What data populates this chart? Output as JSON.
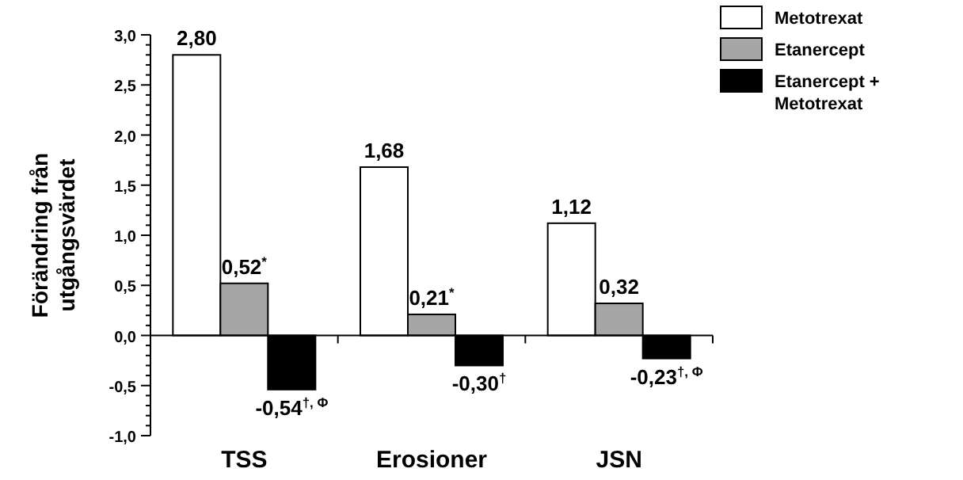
{
  "chart_data": {
    "type": "bar",
    "ylabel": "Förändring från utgångsvärdet",
    "categories": [
      "TSS",
      "Erosioner",
      "JSN"
    ],
    "series": [
      {
        "name": "Metotrexat",
        "color": "#ffffff",
        "values": [
          2.8,
          1.68,
          1.12
        ],
        "value_labels": [
          "2,80",
          "1,68",
          "1,12"
        ]
      },
      {
        "name": "Etanercept",
        "color": "#a6a6a6",
        "values": [
          0.52,
          0.21,
          0.32
        ],
        "value_labels": [
          "0,52$^{*}$",
          "0,21$^{*}$",
          "0,32"
        ]
      },
      {
        "name": "Etanercept + Metotrexat",
        "color": "#000000",
        "values": [
          -0.54,
          -0.3,
          -0.23
        ],
        "value_labels": [
          "-0,54$^{†, Φ}$",
          "-0,30$^{†}$",
          "-0,23$^{†, Φ}$"
        ]
      }
    ],
    "ylim": [
      -1.0,
      3.0
    ],
    "yticks": [
      {
        "value": -1.0,
        "label": "-1,0"
      },
      {
        "value": -0.9,
        "label": null
      },
      {
        "value": -0.8,
        "label": null
      },
      {
        "value": -0.7,
        "label": null
      },
      {
        "value": -0.6,
        "label": null
      },
      {
        "value": -0.5,
        "label": "-0,5"
      },
      {
        "value": -0.4,
        "label": null
      },
      {
        "value": -0.3,
        "label": null
      },
      {
        "value": -0.2,
        "label": null
      },
      {
        "value": -0.1,
        "label": null
      },
      {
        "value": 0.0,
        "label": "0,0"
      },
      {
        "value": 0.1,
        "label": null
      },
      {
        "value": 0.2,
        "label": null
      },
      {
        "value": 0.3,
        "label": null
      },
      {
        "value": 0.4,
        "label": null
      },
      {
        "value": 0.5,
        "label": "0,5"
      },
      {
        "value": 0.6,
        "label": null
      },
      {
        "value": 0.7,
        "label": null
      },
      {
        "value": 0.8,
        "label": null
      },
      {
        "value": 0.9,
        "label": null
      },
      {
        "value": 1.0,
        "label": "1,0"
      },
      {
        "value": 1.1,
        "label": null
      },
      {
        "value": 1.2,
        "label": null
      },
      {
        "value": 1.3,
        "label": null
      },
      {
        "value": 1.4,
        "label": null
      },
      {
        "value": 1.5,
        "label": "1,5"
      },
      {
        "value": 1.6,
        "label": null
      },
      {
        "value": 1.7,
        "label": null
      },
      {
        "value": 1.8,
        "label": null
      },
      {
        "value": 1.9,
        "label": null
      },
      {
        "value": 2.0,
        "label": "2,0"
      },
      {
        "value": 2.1,
        "label": null
      },
      {
        "value": 2.2,
        "label": null
      },
      {
        "value": 2.3,
        "label": null
      },
      {
        "value": 2.4,
        "label": null
      },
      {
        "value": 2.5,
        "label": "2,5"
      },
      {
        "value": 2.6,
        "label": null
      },
      {
        "value": 2.7,
        "label": null
      },
      {
        "value": 2.8,
        "label": null
      },
      {
        "value": 2.9,
        "label": null
      },
      {
        "value": 3.0,
        "label": "3,0"
      }
    ],
    "legend": "top right"
  }
}
